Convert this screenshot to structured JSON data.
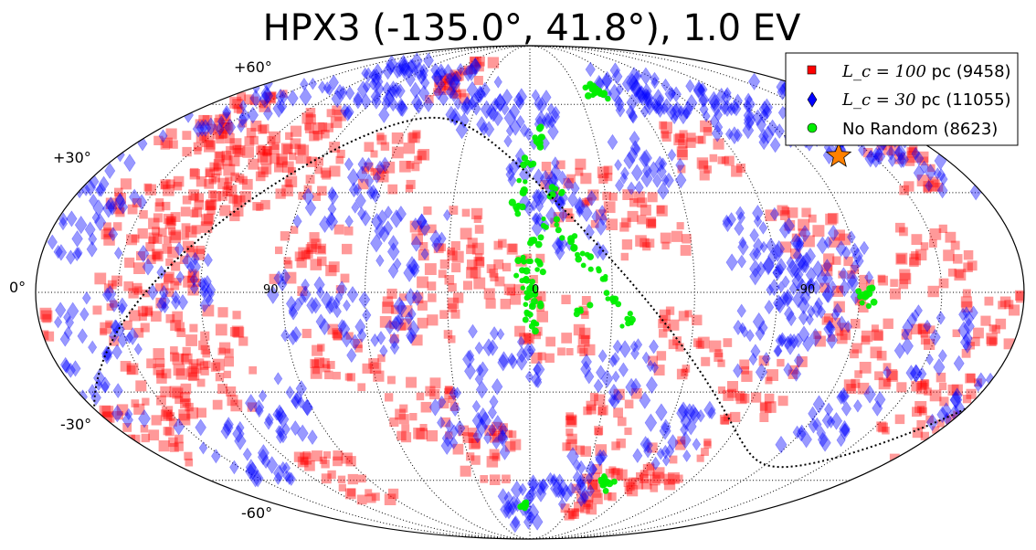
{
  "chart_data": {
    "type": "scatter",
    "projection": "mollweide",
    "title": "HPX3 (-135.0°, 41.8°), 1.0 EV",
    "lat_tick_labels": [
      "+60°",
      "+30°",
      "0°",
      "-30°",
      "-60°"
    ],
    "lon_tick_labels": [
      "90",
      "0",
      "-90"
    ],
    "grid": true,
    "legend": {
      "placement": "top-right",
      "entries": [
        {
          "math": "L_c = 100",
          "text": " pc (9458)",
          "color": "#ff0000",
          "marker": "square"
        },
        {
          "math": "L_c = 30",
          "text": " pc (11055)",
          "color": "#0000ff",
          "marker": "diamond"
        },
        {
          "text": "No Random (8623)",
          "color": "#00ee00",
          "marker": "circle"
        }
      ]
    },
    "source_marker": {
      "lon": -135.0,
      "lat": 41.8,
      "color": "#ff8000",
      "marker": "star"
    },
    "series": [
      {
        "name": "Lc = 100 pc",
        "count": 9458,
        "color": "#ff0000",
        "marker": "square",
        "distribution": "roughly isotropic over the full sky, with dense clusters near lon 120–150, lat -20 to +50",
        "points": [
          [
            120,
            30
          ],
          [
            125,
            40
          ],
          [
            130,
            20
          ],
          [
            140,
            45
          ],
          [
            135,
            10
          ],
          [
            145,
            -5
          ],
          [
            150,
            25
          ],
          [
            118,
            -15
          ],
          [
            128,
            -25
          ],
          [
            110,
            50
          ],
          [
            95,
            35
          ],
          [
            80,
            10
          ],
          [
            70,
            -20
          ],
          [
            60,
            40
          ],
          [
            45,
            -35
          ],
          [
            30,
            15
          ],
          [
            20,
            -50
          ],
          [
            10,
            5
          ],
          [
            -10,
            -10
          ],
          [
            -20,
            30
          ],
          [
            -30,
            -40
          ],
          [
            -45,
            20
          ],
          [
            -60,
            -15
          ],
          [
            -75,
            45
          ],
          [
            -90,
            -30
          ],
          [
            -105,
            15
          ],
          [
            -120,
            -5
          ],
          [
            -135,
            -20
          ],
          [
            -150,
            10
          ],
          [
            -165,
            -35
          ],
          [
            170,
            -45
          ],
          [
            160,
            55
          ],
          [
            100,
            -60
          ],
          [
            -40,
            -65
          ],
          [
            -160,
            40
          ],
          [
            50,
            70
          ],
          [
            -70,
            -55
          ],
          [
            150,
            -30
          ],
          [
            -170,
            -10
          ],
          [
            40,
            -5
          ]
        ]
      },
      {
        "name": "Lc = 30 pc",
        "count": 11055,
        "color": "#0000ff",
        "marker": "diamond",
        "distribution": "roughly isotropic with a dense band near lat +45 to +70 from lon -60 to -180 and a dense region near lon -100, lat 0",
        "points": [
          [
            -60,
            65
          ],
          [
            -80,
            62
          ],
          [
            -100,
            58
          ],
          [
            -120,
            55
          ],
          [
            -140,
            50
          ],
          [
            -160,
            48
          ],
          [
            -175,
            40
          ],
          [
            -95,
            5
          ],
          [
            -105,
            -5
          ],
          [
            -110,
            10
          ],
          [
            -90,
            -15
          ],
          [
            -85,
            15
          ],
          [
            160,
            -10
          ],
          [
            165,
            20
          ],
          [
            175,
            -30
          ],
          [
            150,
            60
          ],
          [
            120,
            70
          ],
          [
            90,
            65
          ],
          [
            60,
            68
          ],
          [
            30,
            60
          ],
          [
            0,
            55
          ],
          [
            10,
            -20
          ],
          [
            -15,
            20
          ],
          [
            25,
            -40
          ],
          [
            55,
            -10
          ],
          [
            75,
            30
          ],
          [
            -35,
            -25
          ],
          [
            -50,
            40
          ],
          [
            -65,
            -45
          ],
          [
            -130,
            -40
          ],
          [
            -150,
            -15
          ],
          [
            140,
            -50
          ],
          [
            100,
            -35
          ],
          [
            45,
            15
          ],
          [
            -25,
            -60
          ],
          [
            5,
            -70
          ],
          [
            80,
            -5
          ],
          [
            -5,
            35
          ],
          [
            130,
            5
          ],
          [
            -170,
            60
          ]
        ]
      },
      {
        "name": "No Random",
        "count": 8623,
        "color": "#00ee00",
        "marker": "circle",
        "distribution": "tightly clustered near the source and along a narrow stream near lon 0",
        "points": [
          [
            -40,
            65
          ],
          [
            -42,
            66
          ],
          [
            -44,
            64
          ],
          [
            -38,
            65
          ],
          [
            0,
            0
          ],
          [
            1,
            2
          ],
          [
            -1,
            -2
          ],
          [
            2,
            5
          ],
          [
            0,
            -5
          ],
          [
            -2,
            8
          ],
          [
            3,
            10
          ],
          [
            -3,
            15
          ],
          [
            5,
            25
          ],
          [
            2,
            32
          ],
          [
            0,
            40
          ],
          [
            -2,
            45
          ],
          [
            -5,
            50
          ],
          [
            -10,
            30
          ],
          [
            -8,
            20
          ],
          [
            -15,
            15
          ],
          [
            -20,
            10
          ],
          [
            -25,
            5
          ],
          [
            -30,
            -2
          ],
          [
            -35,
            -8
          ],
          [
            -20,
            -5
          ],
          [
            0,
            -10
          ],
          [
            -40,
            -60
          ],
          [
            -45,
            -62
          ],
          [
            5,
            -70
          ],
          [
            -122,
            0
          ],
          [
            -124,
            -2
          ]
        ]
      }
    ]
  }
}
